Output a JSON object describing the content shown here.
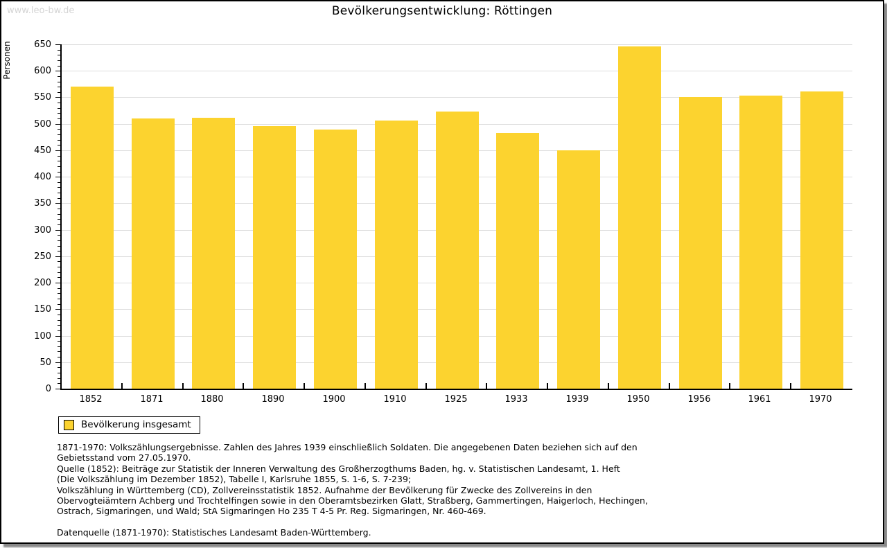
{
  "page": {
    "watermark": "www.leo-bw.de",
    "title": "Bevölkerungsentwicklung: Röttingen"
  },
  "chart_data": {
    "type": "bar",
    "title": "Bevölkerungsentwicklung: Röttingen",
    "ylabel": "Personen",
    "xlabel": "",
    "categories": [
      "1852",
      "1871",
      "1880",
      "1890",
      "1900",
      "1910",
      "1925",
      "1933",
      "1939",
      "1950",
      "1956",
      "1961",
      "1970"
    ],
    "series": [
      {
        "name": "Bevölkerung insgesamt",
        "values": [
          570,
          510,
          512,
          496,
          489,
          506,
          523,
          482,
          450,
          646,
          550,
          553,
          561
        ]
      }
    ],
    "ylim": [
      0,
      650
    ],
    "ytick_step": 50,
    "ytick_minor_step": 10,
    "grid": true,
    "bar_color": "#FCD32F",
    "legend_position": "bottom-left"
  },
  "legend": {
    "label": "Bevölkerung insgesamt",
    "swatch_color": "#FCD32F"
  },
  "footer": {
    "lines": [
      "1871-1970: Volkszählungsergebnisse. Zahlen des Jahres 1939 einschließlich Soldaten. Die angegebenen Daten beziehen sich auf den",
      "Gebietsstand vom 27.05.1970.",
      "Quelle (1852): Beiträge zur Statistik der Inneren Verwaltung des Großherzogthums Baden, hg. v. Statistischen Landesamt, 1. Heft",
      "(Die Volkszählung im Dezember 1852), Tabelle I, Karlsruhe 1855, S. 1-6, S. 7-239;",
      "Volkszählung in Württemberg (CD), Zollvereinsstatistik 1852. Aufnahme der Bevölkerung für Zwecke des Zollvereins in den",
      "Obervogteiämtern Achberg und Trochtelfingen sowie in den Oberamtsbezirken Glatt, Straßberg, Gammertingen, Haigerloch, Hechingen,",
      "Ostrach, Sigmaringen, und Wald; StA Sigmaringen Ho 235 T 4-5 Pr. Reg. Sigmaringen, Nr. 460-469."
    ],
    "datasource": "Datenquelle (1871-1970): Statistisches Landesamt Baden-Württemberg."
  },
  "colors": {
    "bar": "#FCD32F",
    "gridline": "#dcdcdc",
    "axis": "#000000",
    "watermark": "#d4d4d4",
    "shadow": "#8a8a8a"
  }
}
